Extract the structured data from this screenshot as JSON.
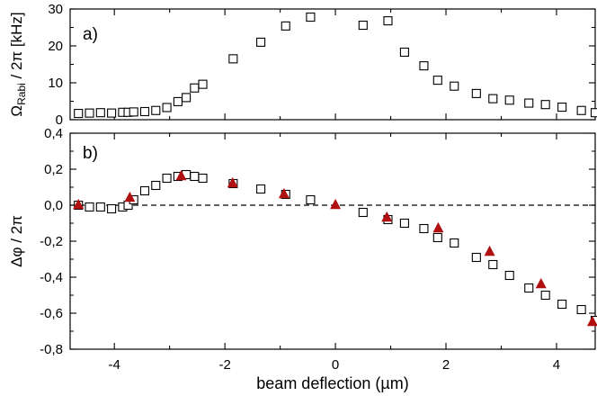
{
  "chart_data": [
    {
      "type": "scatter",
      "panel_label": "a)",
      "ylabel_main": "Ω",
      "ylabel_sub": "Rabi",
      "ylabel_rest": " / 2π [kHz]",
      "xlim": [
        -4.8,
        4.7
      ],
      "ylim": [
        0,
        30
      ],
      "yticks": [
        0,
        10,
        20,
        30
      ],
      "ytick_labels": [
        "0",
        "10",
        "20",
        "30"
      ],
      "xticks": [
        -4,
        -2,
        0,
        2,
        4
      ],
      "show_xtick_labels": false,
      "series": [
        {
          "marker": "open-square",
          "color": "#000000",
          "x": [
            -4.65,
            -4.45,
            -4.25,
            -4.05,
            -3.85,
            -3.75,
            -3.65,
            -3.45,
            -3.25,
            -3.05,
            -2.85,
            -2.7,
            -2.55,
            -2.4,
            -1.85,
            -1.35,
            -0.9,
            -0.45,
            0.5,
            0.95,
            1.25,
            1.6,
            1.85,
            2.15,
            2.55,
            2.85,
            3.15,
            3.5,
            3.8,
            4.1,
            4.45,
            4.7
          ],
          "y": [
            1.7,
            1.8,
            1.9,
            1.8,
            2.0,
            2.0,
            2.1,
            2.2,
            2.5,
            3.3,
            4.9,
            6.0,
            8.6,
            9.6,
            16.5,
            21.0,
            25.4,
            27.8,
            25.6,
            26.8,
            18.3,
            14.6,
            10.7,
            9.1,
            7.1,
            5.7,
            5.3,
            4.5,
            4.1,
            3.4,
            2.5,
            1.9
          ]
        }
      ]
    },
    {
      "type": "scatter",
      "panel_label": "b)",
      "ylabel": "Δφ / 2π",
      "xlabel": "beam deflection (µm)",
      "xlim": [
        -4.8,
        4.7
      ],
      "ylim": [
        -0.8,
        0.4
      ],
      "yticks": [
        -0.8,
        -0.6,
        -0.4,
        -0.2,
        0.0,
        0.2,
        0.4
      ],
      "ytick_labels": [
        "-0,8",
        "-0,6",
        "-0,4",
        "-0,2",
        "0,0",
        "0,2",
        "0,4"
      ],
      "xticks": [
        -4,
        -2,
        0,
        2,
        4
      ],
      "xtick_labels": [
        "-4",
        "-2",
        "0",
        "2",
        "4"
      ],
      "reference_line": {
        "y": 0,
        "style": "dashed"
      },
      "series": [
        {
          "marker": "open-square",
          "color": "#000000",
          "x": [
            -4.65,
            -4.45,
            -4.25,
            -4.05,
            -3.85,
            -3.75,
            -3.65,
            -3.45,
            -3.25,
            -3.05,
            -2.85,
            -2.7,
            -2.55,
            -2.4,
            -1.85,
            -1.35,
            -0.9,
            -0.45,
            0.5,
            0.95,
            1.25,
            1.6,
            1.85,
            2.15,
            2.55,
            2.85,
            3.15,
            3.5,
            3.8,
            4.1,
            4.45,
            4.7
          ],
          "y": [
            0.0,
            -0.01,
            -0.01,
            -0.02,
            -0.01,
            0.0,
            0.03,
            0.08,
            0.11,
            0.15,
            0.16,
            0.17,
            0.16,
            0.15,
            0.12,
            0.09,
            0.06,
            0.03,
            -0.04,
            -0.08,
            -0.1,
            -0.13,
            -0.18,
            -0.21,
            -0.29,
            -0.33,
            -0.39,
            -0.46,
            -0.5,
            -0.55,
            -0.58,
            -0.64
          ]
        },
        {
          "marker": "filled-triangle",
          "color": "#b01010",
          "x": [
            -4.65,
            -3.72,
            -2.79,
            -1.86,
            -0.93,
            0.0,
            0.93,
            1.86,
            2.79,
            3.72,
            4.65
          ],
          "y": [
            0.0,
            0.04,
            0.16,
            0.12,
            0.06,
            0.0,
            -0.07,
            -0.13,
            -0.26,
            -0.44,
            -0.65
          ]
        }
      ]
    }
  ]
}
